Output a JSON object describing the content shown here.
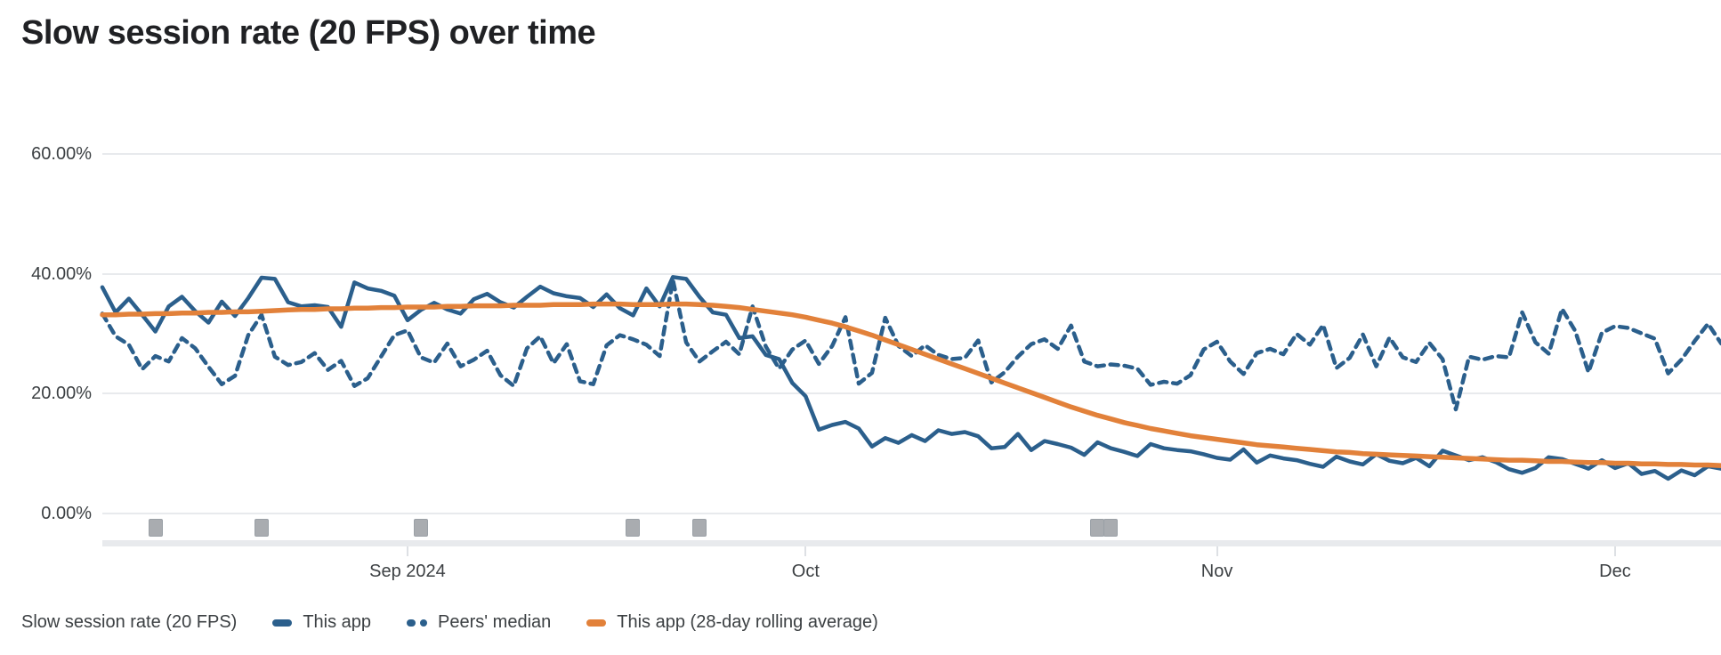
{
  "title": "Slow session rate (20 FPS) over time",
  "colors": {
    "this_app": "#2b5f8c",
    "peers_median": "#2b5f8c",
    "rolling_avg": "#e2813a",
    "gridline": "#e8eaed",
    "axis_text": "#3c4043",
    "title_text": "#202124",
    "release_marker": "#a9acb0"
  },
  "legend": {
    "label": "Slow session rate (20 FPS)",
    "items": [
      {
        "label": "This app",
        "style": "solid",
        "color": "#2b5f8c"
      },
      {
        "label": "Peers' median",
        "style": "dashed",
        "color": "#2b5f8c"
      },
      {
        "label": "This app (28-day rolling average)",
        "style": "solid",
        "color": "#e2813a"
      }
    ]
  },
  "chart_data": {
    "type": "line",
    "title": "Slow session rate (20 FPS) over time",
    "ylabel": "Slow session rate (20 FPS)",
    "xlabel": "",
    "ylim": [
      0,
      60
    ],
    "grid": true,
    "legend_position": "bottom",
    "y_tick_values": [
      60,
      40,
      20,
      0
    ],
    "y_tick_labels": [
      "60.00%",
      "40.00%",
      "20.00%",
      "0.00%"
    ],
    "x_unit": "day-index",
    "x_ticks": [
      {
        "label": "Sep 2024",
        "day": 23
      },
      {
        "label": "Oct",
        "day": 53
      },
      {
        "label": "Nov",
        "day": 84
      },
      {
        "label": "Dec",
        "day": 114
      }
    ],
    "release_marker_days": [
      4,
      12,
      24,
      40,
      45,
      75,
      76
    ],
    "series": [
      {
        "name": "This app",
        "style": "solid",
        "color": "#2b5f8c",
        "unit": "%",
        "values": [
          37.8,
          33.6,
          35.9,
          33.2,
          30.4,
          34.6,
          36.2,
          33.8,
          31.9,
          35.4,
          33.0,
          36.0,
          39.4,
          39.2,
          35.3,
          34.6,
          34.8,
          34.5,
          31.2,
          38.6,
          37.6,
          37.2,
          36.4,
          32.3,
          34.0,
          35.2,
          34.1,
          33.4,
          35.8,
          36.7,
          35.3,
          34.4,
          36.2,
          37.9,
          36.8,
          36.3,
          36.0,
          34.5,
          36.6,
          34.3,
          33.1,
          37.6,
          34.6,
          39.5,
          39.2,
          36.2,
          33.6,
          33.2,
          29.3,
          29.6,
          26.5,
          25.8,
          21.8,
          19.6,
          14.0,
          14.8,
          15.3,
          14.2,
          11.2,
          12.6,
          11.8,
          13.1,
          12.1,
          13.9,
          13.3,
          13.6,
          12.9,
          10.9,
          11.1,
          13.3,
          10.6,
          12.1,
          11.6,
          11.0,
          9.8,
          11.9,
          10.9,
          10.3,
          9.6,
          11.6,
          10.9,
          10.6,
          10.4,
          9.9,
          9.3,
          9.0,
          10.7,
          8.5,
          9.7,
          9.2,
          8.9,
          8.3,
          7.8,
          9.5,
          8.7,
          8.2,
          9.9,
          8.8,
          8.4,
          9.3,
          7.9,
          10.5,
          9.7,
          8.9,
          9.4,
          8.6,
          7.4,
          6.8,
          7.6,
          9.4,
          9.1,
          8.3,
          7.5,
          8.9,
          7.6,
          8.4,
          6.6,
          7.1,
          5.8,
          7.2,
          6.4,
          7.9,
          7.5
        ]
      },
      {
        "name": "Peers' median",
        "style": "dashed",
        "color": "#2b5f8c",
        "unit": "%",
        "values": [
          33.4,
          29.6,
          28.2,
          24.1,
          26.3,
          25.4,
          29.3,
          27.6,
          24.5,
          21.6,
          23.0,
          29.8,
          33.2,
          26.2,
          24.8,
          25.3,
          26.8,
          24.0,
          25.5,
          21.3,
          22.6,
          26.2,
          29.8,
          30.6,
          26.1,
          25.2,
          28.4,
          24.6,
          25.7,
          27.2,
          23.1,
          21.3,
          27.6,
          29.6,
          25.1,
          28.3,
          22.1,
          21.6,
          28.1,
          29.8,
          29.1,
          28.2,
          26.3,
          39.0,
          28.6,
          25.4,
          27.1,
          28.7,
          26.6,
          34.6,
          27.9,
          24.2,
          27.4,
          28.9,
          25.0,
          28.0,
          32.8,
          21.7,
          23.5,
          32.7,
          28.0,
          26.3,
          28.1,
          26.5,
          25.8,
          26.0,
          28.9,
          21.9,
          23.6,
          26.2,
          28.3,
          29.1,
          27.5,
          31.4,
          25.4,
          24.6,
          24.9,
          24.7,
          24.2,
          21.5,
          22.0,
          21.7,
          23.1,
          27.4,
          28.7,
          25.4,
          23.3,
          26.8,
          27.5,
          26.6,
          30.0,
          28.2,
          31.5,
          24.3,
          26.0,
          29.9,
          24.6,
          29.4,
          26.1,
          25.3,
          28.5,
          25.8,
          17.4,
          26.2,
          25.7,
          26.3,
          26.1,
          33.6,
          28.6,
          26.7,
          34.2,
          30.5,
          23.6,
          30.2,
          31.3,
          31.0,
          30.1,
          29.2,
          23.4,
          25.7,
          28.8,
          31.7,
          28.4
        ]
      },
      {
        "name": "This app (28-day rolling average)",
        "style": "solid",
        "color": "#e2813a",
        "unit": "%",
        "values": [
          33.2,
          33.2,
          33.3,
          33.3,
          33.4,
          33.4,
          33.5,
          33.5,
          33.6,
          33.6,
          33.7,
          33.7,
          33.8,
          33.9,
          34.0,
          34.1,
          34.1,
          34.2,
          34.2,
          34.3,
          34.3,
          34.4,
          34.4,
          34.5,
          34.5,
          34.5,
          34.6,
          34.6,
          34.7,
          34.7,
          34.7,
          34.8,
          34.8,
          34.8,
          34.9,
          34.9,
          34.9,
          35.0,
          35.0,
          35.0,
          34.9,
          34.9,
          34.9,
          35.0,
          35.0,
          34.9,
          34.8,
          34.6,
          34.4,
          34.1,
          33.8,
          33.5,
          33.2,
          32.8,
          32.3,
          31.8,
          31.2,
          30.5,
          29.8,
          29.0,
          28.2,
          27.4,
          26.6,
          25.8,
          25.0,
          24.2,
          23.4,
          22.6,
          21.8,
          21.0,
          20.2,
          19.4,
          18.6,
          17.8,
          17.1,
          16.4,
          15.8,
          15.2,
          14.7,
          14.2,
          13.8,
          13.4,
          13.0,
          12.7,
          12.4,
          12.1,
          11.8,
          11.5,
          11.3,
          11.1,
          10.9,
          10.7,
          10.5,
          10.3,
          10.2,
          10.0,
          9.9,
          9.8,
          9.7,
          9.6,
          9.5,
          9.4,
          9.3,
          9.2,
          9.1,
          9.0,
          8.9,
          8.9,
          8.8,
          8.7,
          8.7,
          8.6,
          8.5,
          8.5,
          8.4,
          8.4,
          8.3,
          8.3,
          8.2,
          8.2,
          8.1,
          8.1,
          8.0
        ]
      }
    ]
  }
}
